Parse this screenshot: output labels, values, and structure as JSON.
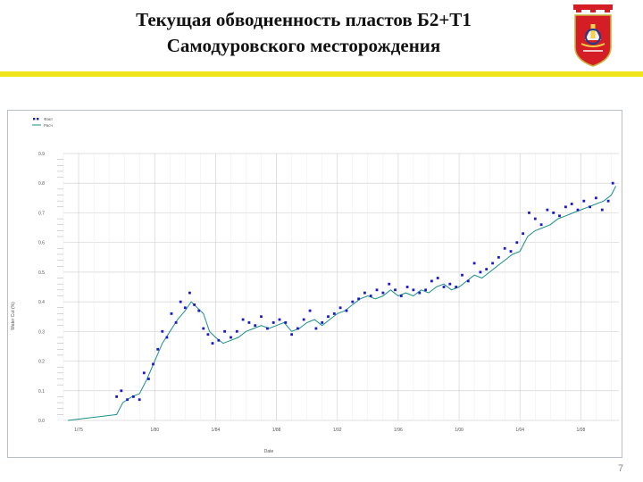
{
  "slide": {
    "title_line1": "Текущая обводненность пластов Б2+Т1",
    "title_line2": "Самодуровского месторождения",
    "page_number": "7",
    "accent_color": "#f0e41a"
  },
  "chart_data": {
    "type": "line",
    "title": "",
    "xlabel": "Date",
    "ylabel": "Water Cut (%)",
    "legend_position": "top-left",
    "grid": true,
    "x_tick_labels": [
      "1/75",
      "1/80",
      "1/84",
      "1/88",
      "1/92",
      "1/96",
      "1/00",
      "1/04",
      "1/08"
    ],
    "x_tick_values": [
      1975,
      1980,
      1984,
      1988,
      1992,
      1996,
      2000,
      2004,
      2008
    ],
    "y_tick_labels": [
      "0.0",
      "0.1",
      "0.2",
      "0.3",
      "0.4",
      "0.5",
      "0.6",
      "0.7",
      "0.8",
      "0.9"
    ],
    "xlim": [
      1974,
      2010.5
    ],
    "ylim": [
      0,
      0.9
    ],
    "colors": {
      "actual": "#1a1acb",
      "calculated": "#1a8f8a"
    },
    "series": [
      {
        "name": "Факт",
        "style": "markers",
        "x": [
          1977.5,
          1977.8,
          1978.2,
          1978.6,
          1979.0,
          1979.3,
          1979.6,
          1979.9,
          1980.2,
          1980.5,
          1980.8,
          1981.1,
          1981.4,
          1981.7,
          1982.0,
          1982.3,
          1982.6,
          1982.9,
          1983.2,
          1983.5,
          1983.8,
          1984.2,
          1984.6,
          1985.0,
          1985.4,
          1985.8,
          1986.2,
          1986.6,
          1987.0,
          1987.4,
          1987.8,
          1988.2,
          1988.6,
          1989.0,
          1989.4,
          1989.8,
          1990.2,
          1990.6,
          1991.0,
          1991.4,
          1991.8,
          1992.2,
          1992.6,
          1993.0,
          1993.4,
          1993.8,
          1994.2,
          1994.6,
          1995.0,
          1995.4,
          1995.8,
          1996.2,
          1996.6,
          1997.0,
          1997.4,
          1997.8,
          1998.2,
          1998.6,
          1999.0,
          1999.4,
          1999.8,
          2000.2,
          2000.6,
          2001.0,
          2001.4,
          2001.8,
          2002.2,
          2002.6,
          2003.0,
          2003.4,
          2003.8,
          2004.2,
          2004.6,
          2005.0,
          2005.4,
          2005.8,
          2006.2,
          2006.6,
          2007.0,
          2007.4,
          2007.8,
          2008.2,
          2008.6,
          2009.0,
          2009.4,
          2009.8,
          2010.1
        ],
        "y": [
          0.08,
          0.1,
          0.07,
          0.08,
          0.07,
          0.16,
          0.14,
          0.19,
          0.24,
          0.3,
          0.28,
          0.36,
          0.33,
          0.4,
          0.38,
          0.43,
          0.39,
          0.37,
          0.31,
          0.29,
          0.26,
          0.27,
          0.3,
          0.28,
          0.3,
          0.34,
          0.33,
          0.32,
          0.35,
          0.31,
          0.33,
          0.34,
          0.33,
          0.29,
          0.31,
          0.34,
          0.37,
          0.31,
          0.33,
          0.35,
          0.36,
          0.38,
          0.37,
          0.4,
          0.41,
          0.43,
          0.42,
          0.44,
          0.43,
          0.46,
          0.44,
          0.42,
          0.45,
          0.44,
          0.43,
          0.44,
          0.47,
          0.48,
          0.45,
          0.46,
          0.45,
          0.49,
          0.47,
          0.53,
          0.5,
          0.51,
          0.53,
          0.55,
          0.58,
          0.57,
          0.6,
          0.63,
          0.7,
          0.68,
          0.66,
          0.71,
          0.7,
          0.69,
          0.72,
          0.73,
          0.71,
          0.74,
          0.72,
          0.75,
          0.71,
          0.74,
          0.8
        ]
      },
      {
        "name": "Расч",
        "style": "line",
        "x": [
          1974.3,
          1977.5,
          1977.9,
          1978.5,
          1979.0,
          1979.5,
          1980.0,
          1980.5,
          1981.0,
          1981.5,
          1982.0,
          1982.4,
          1982.8,
          1983.2,
          1983.6,
          1984.0,
          1984.5,
          1985.0,
          1985.5,
          1986.0,
          1986.5,
          1987.0,
          1987.5,
          1988.0,
          1988.5,
          1989.0,
          1989.5,
          1990.0,
          1990.5,
          1991.0,
          1991.5,
          1992.0,
          1992.5,
          1993.0,
          1993.5,
          1994.0,
          1994.5,
          1995.0,
          1995.5,
          1996.0,
          1996.5,
          1997.0,
          1997.5,
          1998.0,
          1998.5,
          1999.0,
          1999.5,
          2000.0,
          2000.5,
          2001.0,
          2001.5,
          2002.0,
          2002.5,
          2003.0,
          2003.5,
          2004.0,
          2004.5,
          2005.0,
          2005.5,
          2006.0,
          2006.5,
          2007.0,
          2007.5,
          2008.0,
          2008.5,
          2009.0,
          2009.5,
          2010.0,
          2010.3
        ],
        "y": [
          0.0,
          0.02,
          0.06,
          0.08,
          0.09,
          0.14,
          0.2,
          0.26,
          0.3,
          0.34,
          0.37,
          0.4,
          0.38,
          0.36,
          0.3,
          0.28,
          0.26,
          0.27,
          0.28,
          0.3,
          0.31,
          0.32,
          0.31,
          0.32,
          0.33,
          0.3,
          0.31,
          0.33,
          0.34,
          0.32,
          0.34,
          0.36,
          0.37,
          0.39,
          0.41,
          0.42,
          0.41,
          0.42,
          0.44,
          0.42,
          0.43,
          0.42,
          0.44,
          0.43,
          0.45,
          0.46,
          0.44,
          0.45,
          0.47,
          0.49,
          0.48,
          0.5,
          0.52,
          0.54,
          0.56,
          0.57,
          0.62,
          0.64,
          0.65,
          0.66,
          0.68,
          0.69,
          0.7,
          0.71,
          0.72,
          0.73,
          0.74,
          0.76,
          0.79
        ]
      }
    ]
  }
}
